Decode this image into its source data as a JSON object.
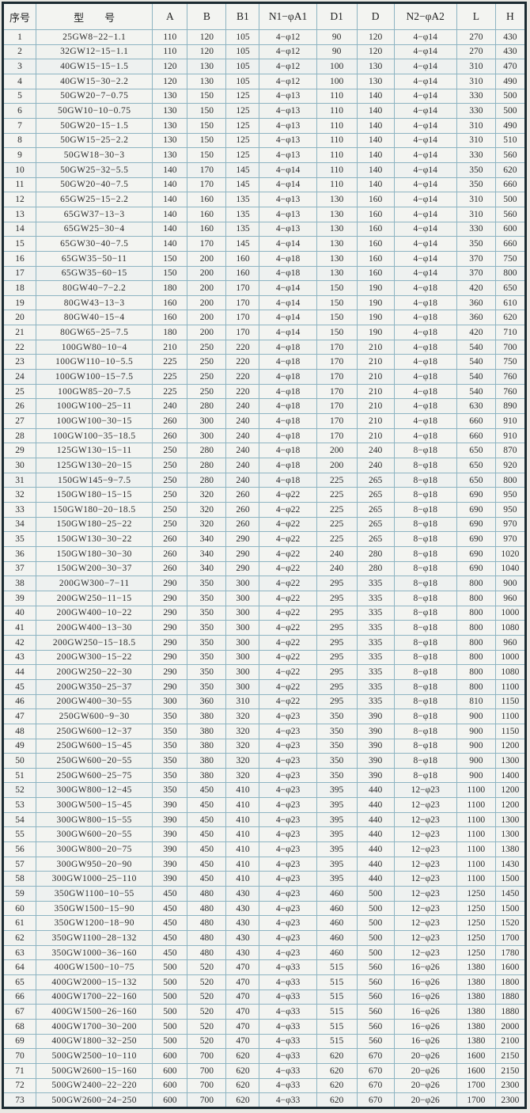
{
  "colors": {
    "paper": "#e9e8e3",
    "cell_background": "#f3f4f1",
    "grid_line": "#8db4c2",
    "outer_border": "#1b2a31",
    "text": "#2b2b2b"
  },
  "table": {
    "headers": [
      "序号",
      "型　　号",
      "A",
      "B",
      "B1",
      "N1−φA1",
      "D1",
      "D",
      "N2−φA2",
      "L",
      "H"
    ],
    "rows": [
      [
        "1",
        "25GW8−22−1.1",
        "110",
        "120",
        "105",
        "4−φ12",
        "90",
        "120",
        "4−φ14",
        "270",
        "430"
      ],
      [
        "2",
        "32GW12−15−1.1",
        "110",
        "120",
        "105",
        "4−φ12",
        "90",
        "120",
        "4−φ14",
        "270",
        "430"
      ],
      [
        "3",
        "40GW15−15−1.5",
        "120",
        "130",
        "105",
        "4−φ12",
        "100",
        "130",
        "4−φ14",
        "310",
        "470"
      ],
      [
        "4",
        "40GW15−30−2.2",
        "120",
        "130",
        "105",
        "4−φ12",
        "100",
        "130",
        "4−φ14",
        "310",
        "490"
      ],
      [
        "5",
        "50GW20−7−0.75",
        "130",
        "150",
        "125",
        "4−φ13",
        "110",
        "140",
        "4−φ14",
        "330",
        "500"
      ],
      [
        "6",
        "50GW10−10−0.75",
        "130",
        "150",
        "125",
        "4−φ13",
        "110",
        "140",
        "4−φ14",
        "330",
        "500"
      ],
      [
        "7",
        "50GW20−15−1.5",
        "130",
        "150",
        "125",
        "4−φ13",
        "110",
        "140",
        "4−φ14",
        "310",
        "490"
      ],
      [
        "8",
        "50GW15−25−2.2",
        "130",
        "150",
        "125",
        "4−φ13",
        "110",
        "140",
        "4−φ14",
        "310",
        "510"
      ],
      [
        "9",
        "50GW18−30−3",
        "130",
        "150",
        "125",
        "4−φ13",
        "110",
        "140",
        "4−φ14",
        "330",
        "560"
      ],
      [
        "10",
        "50GW25−32−5.5",
        "140",
        "170",
        "145",
        "4−φ14",
        "110",
        "140",
        "4−φ14",
        "350",
        "620"
      ],
      [
        "11",
        "50GW20−40−7.5",
        "140",
        "170",
        "145",
        "4−φ14",
        "110",
        "140",
        "4−φ14",
        "350",
        "660"
      ],
      [
        "12",
        "65GW25−15−2.2",
        "140",
        "160",
        "135",
        "4−φ13",
        "130",
        "160",
        "4−φ14",
        "310",
        "500"
      ],
      [
        "13",
        "65GW37−13−3",
        "140",
        "160",
        "135",
        "4−φ13",
        "130",
        "160",
        "4−φ14",
        "310",
        "560"
      ],
      [
        "14",
        "65GW25−30−4",
        "140",
        "160",
        "135",
        "4−φ13",
        "130",
        "160",
        "4−φ14",
        "330",
        "600"
      ],
      [
        "15",
        "65GW30−40−7.5",
        "140",
        "170",
        "145",
        "4−φ14",
        "130",
        "160",
        "4−φ14",
        "350",
        "660"
      ],
      [
        "16",
        "65GW35−50−11",
        "150",
        "200",
        "160",
        "4−φ18",
        "130",
        "160",
        "4−φ14",
        "370",
        "750"
      ],
      [
        "17",
        "65GW35−60−15",
        "150",
        "200",
        "160",
        "4−φ18",
        "130",
        "160",
        "4−φ14",
        "370",
        "800"
      ],
      [
        "18",
        "80GW40−7−2.2",
        "180",
        "200",
        "170",
        "4−φ14",
        "150",
        "190",
        "4−φ18",
        "420",
        "650"
      ],
      [
        "19",
        "80GW43−13−3",
        "160",
        "200",
        "170",
        "4−φ14",
        "150",
        "190",
        "4−φ18",
        "360",
        "610"
      ],
      [
        "20",
        "80GW40−15−4",
        "160",
        "200",
        "170",
        "4−φ14",
        "150",
        "190",
        "4−φ18",
        "360",
        "620"
      ],
      [
        "21",
        "80GW65−25−7.5",
        "180",
        "200",
        "170",
        "4−φ14",
        "150",
        "190",
        "4−φ18",
        "420",
        "710"
      ],
      [
        "22",
        "100GW80−10−4",
        "210",
        "250",
        "220",
        "4−φ18",
        "170",
        "210",
        "4−φ18",
        "540",
        "700"
      ],
      [
        "23",
        "100GW110−10−5.5",
        "225",
        "250",
        "220",
        "4−φ18",
        "170",
        "210",
        "4−φ18",
        "540",
        "750"
      ],
      [
        "24",
        "100GW100−15−7.5",
        "225",
        "250",
        "220",
        "4−φ18",
        "170",
        "210",
        "4−φ18",
        "540",
        "760"
      ],
      [
        "25",
        "100GW85−20−7.5",
        "225",
        "250",
        "220",
        "4−φ18",
        "170",
        "210",
        "4−φ18",
        "540",
        "760"
      ],
      [
        "26",
        "100GW100−25−11",
        "240",
        "280",
        "240",
        "4−φ18",
        "170",
        "210",
        "4−φ18",
        "630",
        "890"
      ],
      [
        "27",
        "100GW100−30−15",
        "260",
        "300",
        "240",
        "4−φ18",
        "170",
        "210",
        "4−φ18",
        "660",
        "910"
      ],
      [
        "28",
        "100GW100−35−18.5",
        "260",
        "300",
        "240",
        "4−φ18",
        "170",
        "210",
        "4−φ18",
        "660",
        "910"
      ],
      [
        "29",
        "125GW130−15−11",
        "250",
        "280",
        "240",
        "4−φ18",
        "200",
        "240",
        "8−φ18",
        "650",
        "870"
      ],
      [
        "30",
        "125GW130−20−15",
        "250",
        "280",
        "240",
        "4−φ18",
        "200",
        "240",
        "8−φ18",
        "650",
        "920"
      ],
      [
        "31",
        "150GW145−9−7.5",
        "250",
        "280",
        "240",
        "4−φ18",
        "225",
        "265",
        "8−φ18",
        "650",
        "800"
      ],
      [
        "32",
        "150GW180−15−15",
        "250",
        "320",
        "260",
        "4−φ22",
        "225",
        "265",
        "8−φ18",
        "690",
        "950"
      ],
      [
        "33",
        "150GW180−20−18.5",
        "250",
        "320",
        "260",
        "4−φ22",
        "225",
        "265",
        "8−φ18",
        "690",
        "950"
      ],
      [
        "34",
        "150GW180−25−22",
        "250",
        "320",
        "260",
        "4−φ22",
        "225",
        "265",
        "8−φ18",
        "690",
        "970"
      ],
      [
        "35",
        "150GW130−30−22",
        "260",
        "340",
        "290",
        "4−φ22",
        "225",
        "265",
        "8−φ18",
        "690",
        "970"
      ],
      [
        "36",
        "150GW180−30−30",
        "260",
        "340",
        "290",
        "4−φ22",
        "240",
        "280",
        "8−φ18",
        "690",
        "1020"
      ],
      [
        "37",
        "150GW200−30−37",
        "260",
        "340",
        "290",
        "4−φ22",
        "240",
        "280",
        "8−φ18",
        "690",
        "1040"
      ],
      [
        "38",
        "200GW300−7−11",
        "290",
        "350",
        "300",
        "4−φ22",
        "295",
        "335",
        "8−φ18",
        "800",
        "900"
      ],
      [
        "39",
        "200GW250−11−15",
        "290",
        "350",
        "300",
        "4−φ22",
        "295",
        "335",
        "8−φ18",
        "800",
        "960"
      ],
      [
        "40",
        "200GW400−10−22",
        "290",
        "350",
        "300",
        "4−φ22",
        "295",
        "335",
        "8−φ18",
        "800",
        "1000"
      ],
      [
        "41",
        "200GW400−13−30",
        "290",
        "350",
        "300",
        "4−φ22",
        "295",
        "335",
        "8−φ18",
        "800",
        "1080"
      ],
      [
        "42",
        "200GW250−15−18.5",
        "290",
        "350",
        "300",
        "4−φ22",
        "295",
        "335",
        "8−φ18",
        "800",
        "960"
      ],
      [
        "43",
        "200GW300−15−22",
        "290",
        "350",
        "300",
        "4−φ22",
        "295",
        "335",
        "8−φ18",
        "800",
        "1000"
      ],
      [
        "44",
        "200GW250−22−30",
        "290",
        "350",
        "300",
        "4−φ22",
        "295",
        "335",
        "8−φ18",
        "800",
        "1080"
      ],
      [
        "45",
        "200GW350−25−37",
        "290",
        "350",
        "300",
        "4−φ22",
        "295",
        "335",
        "8−φ18",
        "800",
        "1100"
      ],
      [
        "46",
        "200GW400−30−55",
        "300",
        "360",
        "310",
        "4−φ22",
        "295",
        "335",
        "8−φ18",
        "810",
        "1150"
      ],
      [
        "47",
        "250GW600−9−30",
        "350",
        "380",
        "320",
        "4−φ23",
        "350",
        "390",
        "8−φ18",
        "900",
        "1100"
      ],
      [
        "48",
        "250GW600−12−37",
        "350",
        "380",
        "320",
        "4−φ23",
        "350",
        "390",
        "8−φ18",
        "900",
        "1150"
      ],
      [
        "49",
        "250GW600−15−45",
        "350",
        "380",
        "320",
        "4−φ23",
        "350",
        "390",
        "8−φ18",
        "900",
        "1200"
      ],
      [
        "50",
        "250GW600−20−55",
        "350",
        "380",
        "320",
        "4−φ23",
        "350",
        "390",
        "8−φ18",
        "900",
        "1300"
      ],
      [
        "51",
        "250GW600−25−75",
        "350",
        "380",
        "320",
        "4−φ23",
        "350",
        "390",
        "8−φ18",
        "900",
        "1400"
      ],
      [
        "52",
        "300GW800−12−45",
        "350",
        "450",
        "410",
        "4−φ23",
        "395",
        "440",
        "12−φ23",
        "1100",
        "1200"
      ],
      [
        "53",
        "300GW500−15−45",
        "390",
        "450",
        "410",
        "4−φ23",
        "395",
        "440",
        "12−φ23",
        "1100",
        "1200"
      ],
      [
        "54",
        "300GW800−15−55",
        "390",
        "450",
        "410",
        "4−φ23",
        "395",
        "440",
        "12−φ23",
        "1100",
        "1300"
      ],
      [
        "55",
        "300GW600−20−55",
        "390",
        "450",
        "410",
        "4−φ23",
        "395",
        "440",
        "12−φ23",
        "1100",
        "1300"
      ],
      [
        "56",
        "300GW800−20−75",
        "390",
        "450",
        "410",
        "4−φ23",
        "395",
        "440",
        "12−φ23",
        "1100",
        "1380"
      ],
      [
        "57",
        "300GW950−20−90",
        "390",
        "450",
        "410",
        "4−φ23",
        "395",
        "440",
        "12−φ23",
        "1100",
        "1430"
      ],
      [
        "58",
        "300GW1000−25−110",
        "390",
        "450",
        "410",
        "4−φ23",
        "395",
        "440",
        "12−φ23",
        "1100",
        "1500"
      ],
      [
        "59",
        "350GW1100−10−55",
        "450",
        "480",
        "430",
        "4−φ23",
        "460",
        "500",
        "12−φ23",
        "1250",
        "1450"
      ],
      [
        "60",
        "350GW1500−15−90",
        "450",
        "480",
        "430",
        "4−φ23",
        "460",
        "500",
        "12−φ23",
        "1250",
        "1500"
      ],
      [
        "61",
        "350GW1200−18−90",
        "450",
        "480",
        "430",
        "4−φ23",
        "460",
        "500",
        "12−φ23",
        "1250",
        "1520"
      ],
      [
        "62",
        "350GW1100−28−132",
        "450",
        "480",
        "430",
        "4−φ23",
        "460",
        "500",
        "12−φ23",
        "1250",
        "1700"
      ],
      [
        "63",
        "350GW1000−36−160",
        "450",
        "480",
        "430",
        "4−φ23",
        "460",
        "500",
        "12−φ23",
        "1250",
        "1780"
      ],
      [
        "64",
        "400GW1500−10−75",
        "500",
        "520",
        "470",
        "4−φ33",
        "515",
        "560",
        "16−φ26",
        "1380",
        "1600"
      ],
      [
        "65",
        "400GW2000−15−132",
        "500",
        "520",
        "470",
        "4−φ33",
        "515",
        "560",
        "16−φ26",
        "1380",
        "1800"
      ],
      [
        "66",
        "400GW1700−22−160",
        "500",
        "520",
        "470",
        "4−φ33",
        "515",
        "560",
        "16−φ26",
        "1380",
        "1880"
      ],
      [
        "67",
        "400GW1500−26−160",
        "500",
        "520",
        "470",
        "4−φ33",
        "515",
        "560",
        "16−φ26",
        "1380",
        "1880"
      ],
      [
        "68",
        "400GW1700−30−200",
        "500",
        "520",
        "470",
        "4−φ33",
        "515",
        "560",
        "16−φ26",
        "1380",
        "2000"
      ],
      [
        "69",
        "400GW1800−32−250",
        "500",
        "520",
        "470",
        "4−φ33",
        "515",
        "560",
        "16−φ26",
        "1380",
        "2100"
      ],
      [
        "70",
        "500GW2500−10−110",
        "600",
        "700",
        "620",
        "4−φ33",
        "620",
        "670",
        "20−φ26",
        "1600",
        "2150"
      ],
      [
        "71",
        "500GW2600−15−160",
        "600",
        "700",
        "620",
        "4−φ33",
        "620",
        "670",
        "20−φ26",
        "1600",
        "2150"
      ],
      [
        "72",
        "500GW2400−22−220",
        "600",
        "700",
        "620",
        "4−φ33",
        "620",
        "670",
        "20−φ26",
        "1700",
        "2300"
      ],
      [
        "73",
        "500GW2600−24−250",
        "600",
        "700",
        "620",
        "4−φ33",
        "620",
        "670",
        "20−φ26",
        "1700",
        "2300"
      ]
    ]
  }
}
